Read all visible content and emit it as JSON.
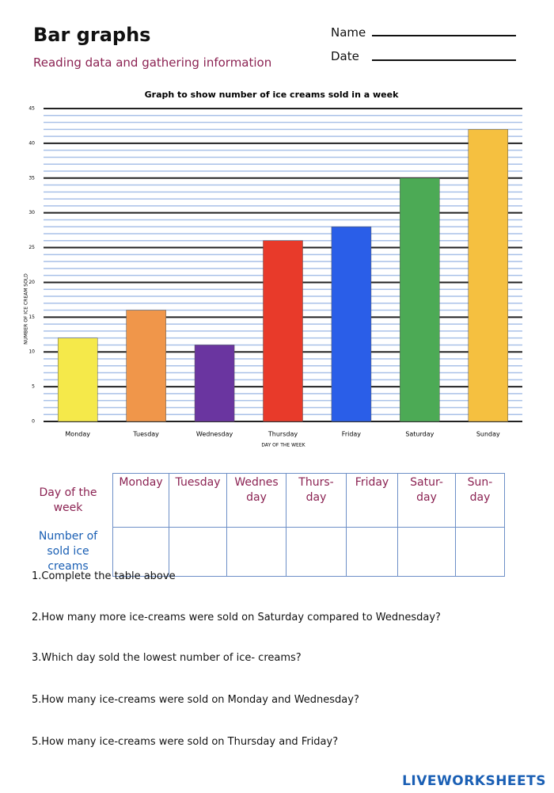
{
  "header": {
    "title": "Bar graphs",
    "subtitle": "Reading data and gathering information",
    "name_label": "Name",
    "date_label": "Date"
  },
  "chart_data": {
    "type": "bar",
    "title": "Graph to show number of ice creams sold in a week",
    "x_label": "DAY OF THE WEEK",
    "y_label": "NUMBER OF ICE CREAM SOLD",
    "categories": [
      "Monday",
      "Tuesday",
      "Wednesday",
      "Thursday",
      "Friday",
      "Saturday",
      "Sunday"
    ],
    "values": [
      12,
      16,
      11,
      26,
      28,
      35,
      42
    ],
    "colors": [
      "#f5e94a",
      "#f0964a",
      "#6a35a0",
      "#e83a2a",
      "#2a5ee8",
      "#4caa55",
      "#f5c040"
    ],
    "ylim": [
      0,
      45
    ],
    "yticks": [
      0,
      5,
      10,
      15,
      20,
      25,
      30,
      35,
      40,
      45
    ],
    "grid": true,
    "minor_grid_step": 1
  },
  "table": {
    "rows": [
      [
        "Day of the week",
        "Monday",
        "Tuesday",
        "Wednes\nday",
        "Thurs-\nday",
        "Friday",
        "Satur-\nday",
        "Sun-\nday"
      ],
      [
        "Number of\nsold ice\ncreams"
      ]
    ]
  },
  "questions": [
    "1.Complete the table above",
    "2.How many more ice-creams were sold on Saturday compared to Wednesday?",
    "3.Which day sold the lowest number of ice- creams?",
    "5.How many ice-creams were sold on Monday and Wednesday?",
    "5.How many ice-creams were sold on Thursday and Friday?"
  ],
  "footer": "LIVEWORKSHEETS"
}
